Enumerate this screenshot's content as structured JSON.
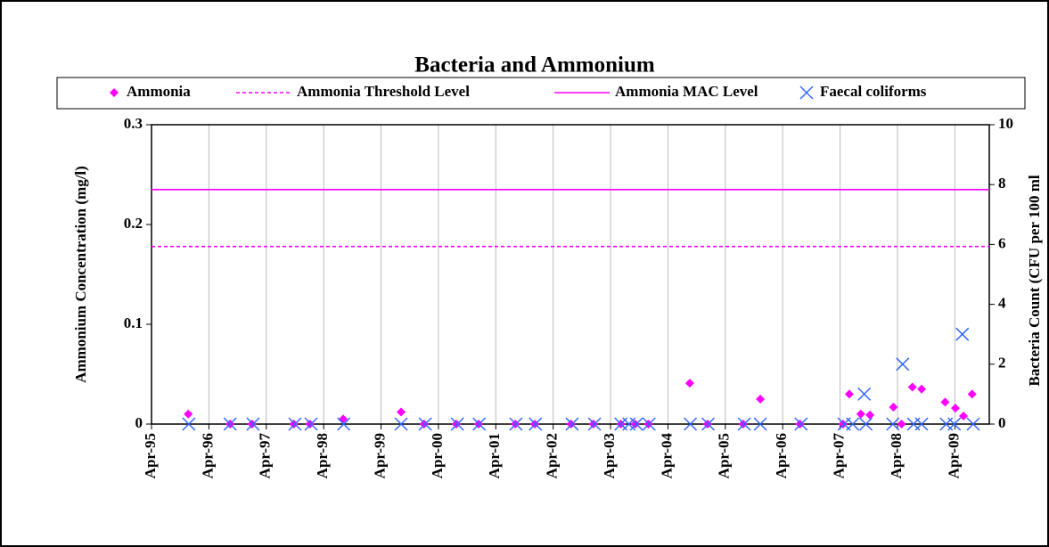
{
  "chart_data": {
    "type": "scatter",
    "title": "Bacteria and Ammonium",
    "ylabel": "Ammonium Concentration (mg/l)",
    "y2label": "Bacteria Count (CFU per 100 ml",
    "xlim": [
      1995.25,
      2009.85
    ],
    "xticks": [
      {
        "value": 1995.25,
        "label": "Apr-95"
      },
      {
        "value": 1996.25,
        "label": "Apr-96"
      },
      {
        "value": 1997.25,
        "label": "Apr-97"
      },
      {
        "value": 1998.25,
        "label": "Apr-98"
      },
      {
        "value": 1999.25,
        "label": "Apr-99"
      },
      {
        "value": 2000.25,
        "label": "Apr-00"
      },
      {
        "value": 2001.25,
        "label": "Apr-01"
      },
      {
        "value": 2002.25,
        "label": "Apr-02"
      },
      {
        "value": 2003.25,
        "label": "Apr-03"
      },
      {
        "value": 2004.25,
        "label": "Apr-04"
      },
      {
        "value": 2005.25,
        "label": "Apr-05"
      },
      {
        "value": 2006.25,
        "label": "Apr-06"
      },
      {
        "value": 2007.25,
        "label": "Apr-07"
      },
      {
        "value": 2008.25,
        "label": "Apr-08"
      },
      {
        "value": 2009.25,
        "label": "Apr-09"
      }
    ],
    "ylim": [
      0,
      0.3
    ],
    "yticks": [
      0,
      0.1,
      0.2,
      0.3
    ],
    "y2lim": [
      0,
      10
    ],
    "y2ticks": [
      0,
      2,
      4,
      6,
      8,
      10
    ],
    "grid": true,
    "legend": "top",
    "series": [
      {
        "name": "Ammonia",
        "color": "#ff00ff",
        "marker": "diamond",
        "x": [
          1995.89,
          1996.62,
          1997.0,
          1997.73,
          1998.01,
          1998.59,
          1999.6,
          2000.0,
          2000.56,
          2000.95,
          2001.59,
          2001.93,
          2002.56,
          2002.95,
          2003.43,
          2003.68,
          2003.91,
          2004.63,
          2004.94,
          2005.56,
          2005.86,
          2006.55,
          2007.3,
          2007.41,
          2007.61,
          2007.77,
          2008.18,
          2008.32,
          2008.51,
          2008.67,
          2009.08,
          2009.26,
          2009.4,
          2009.55
        ],
        "values": [
          0.01,
          0,
          0,
          0,
          0,
          0.005,
          0.012,
          0,
          0,
          0,
          0,
          0,
          0,
          0,
          0,
          0,
          0,
          0.041,
          0,
          0,
          0.025,
          0,
          0,
          0.03,
          0.01,
          0.009,
          0.017,
          0,
          0.037,
          0.035,
          0.022,
          0.016,
          0.008,
          0.03
        ]
      },
      {
        "name": "Ammonia Threshold Level",
        "color": "#ff00ff",
        "dashed": true,
        "level": 0.178
      },
      {
        "name": "Ammonia MAC Level",
        "color": "#ff00ff",
        "dashed": false,
        "level": 0.235
      },
      {
        "name": "Faecal coliforms",
        "color": "#3366ff",
        "marker": "x",
        "axis": "y2",
        "x": [
          1995.9,
          1996.62,
          1997.02,
          1997.75,
          1998.03,
          1998.6,
          1999.6,
          2000.02,
          2000.58,
          2000.96,
          2001.6,
          2001.94,
          2002.58,
          2002.97,
          2003.43,
          2003.57,
          2003.7,
          2003.92,
          2004.64,
          2004.95,
          2005.58,
          2005.86,
          2006.57,
          2007.32,
          2007.47,
          2007.67,
          2007.7,
          2008.17,
          2008.34,
          2008.53,
          2008.67,
          2009.1,
          2009.24,
          2009.38,
          2009.57
        ],
        "values": [
          0,
          0,
          0,
          0,
          0,
          0,
          0,
          0,
          0,
          0,
          0,
          0,
          0,
          0,
          0,
          0,
          0,
          0,
          0,
          0,
          0,
          0,
          0,
          0,
          0,
          1,
          0,
          0,
          2,
          0,
          0,
          0,
          0,
          3,
          0
        ]
      }
    ]
  }
}
